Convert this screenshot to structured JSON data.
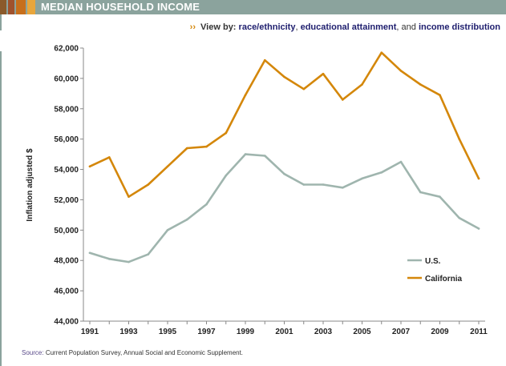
{
  "header": {
    "title": "MEDIAN HOUSEHOLD INCOME",
    "bar_color": "#8ba39d",
    "swatch_colors": [
      "#8b5a2b",
      "#a0522d",
      "#c76f1c",
      "#e8a63c"
    ]
  },
  "view_by": {
    "label": "View by:",
    "links": [
      "race/ethnicity",
      "educational attainment",
      "income distribution"
    ],
    "comma": ",",
    "conjunction": "and"
  },
  "source": {
    "label": "Source:",
    "text": "Current Population Survey, Annual Social and Economic Supplement."
  },
  "chart_data": {
    "type": "line",
    "title": "",
    "xlabel": "",
    "ylabel": "Inflation adjusted $",
    "x": [
      1991,
      1992,
      1993,
      1994,
      1995,
      1996,
      1997,
      1998,
      1999,
      2000,
      2001,
      2002,
      2003,
      2004,
      2005,
      2006,
      2007,
      2008,
      2009,
      2010,
      2011
    ],
    "x_ticks": [
      "1991",
      "1993",
      "1995",
      "1997",
      "1999",
      "2001",
      "2003",
      "2005",
      "2007",
      "2009",
      "2011"
    ],
    "y_ticks": [
      "44,000",
      "46,000",
      "48,000",
      "50,000",
      "52,000",
      "54,000",
      "56,000",
      "58,000",
      "60,000",
      "62,000"
    ],
    "ylim": [
      44000,
      62000
    ],
    "grid": false,
    "legend_position": "bottom-right",
    "series": [
      {
        "name": "U.S.",
        "color": "#9fb5ae",
        "values": [
          48500,
          48100,
          47900,
          48400,
          50000,
          50700,
          51700,
          53600,
          55000,
          54900,
          53700,
          53000,
          53000,
          52800,
          53400,
          53800,
          54500,
          52500,
          52200,
          50800,
          50100
        ]
      },
      {
        "name": "California",
        "color": "#d4870a",
        "values": [
          54200,
          54800,
          52200,
          53000,
          54200,
          55400,
          55500,
          56400,
          58900,
          61200,
          60100,
          59300,
          60300,
          58600,
          59600,
          61700,
          60500,
          59600,
          58900,
          56000,
          53400
        ]
      }
    ]
  }
}
